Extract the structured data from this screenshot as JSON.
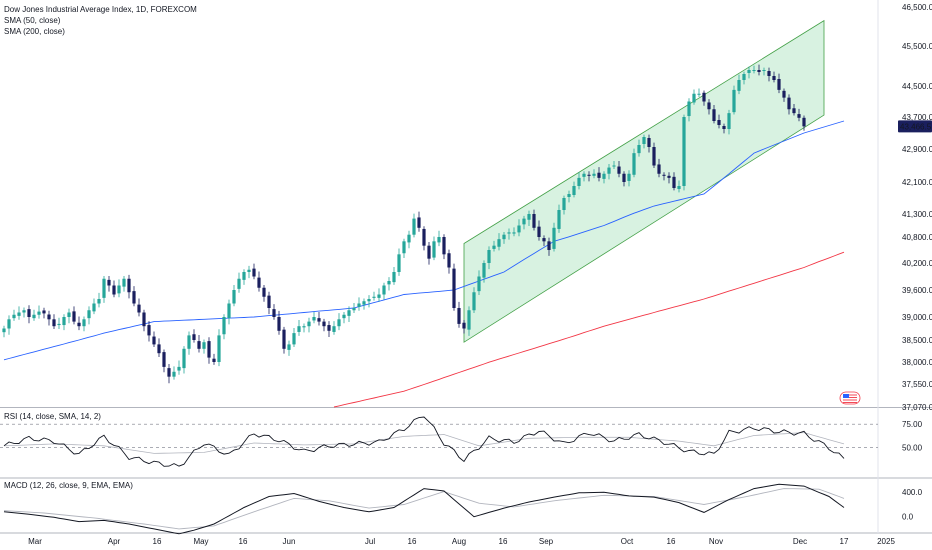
{
  "legend": {
    "title": "Dow Jones Industrial Average Index, 1D, FOREXCOM",
    "sma50": "SMA (50, close)",
    "sma200": "SMA (200, close)"
  },
  "rsi_label": "RSI (14, close, SMA, 14, 2)",
  "macd_label": "MACD (12, 26, close, 9, EMA, EMA)",
  "colors": {
    "up": "#26a69a",
    "down": "#1a1f5e",
    "sma50": "#2962ff",
    "sma200": "#f23645",
    "channel_fill": "#d1f0dc",
    "channel_line": "#43a047",
    "price_tag": "#1a1f5e"
  },
  "chart_data": [
    {
      "type": "candlestick",
      "title": "Dow Jones Industrial Average Index, 1D, FOREXCOM",
      "y_ticks": [
        "46,500.0",
        "45,500.0",
        "44,500.0",
        "43,700.0",
        "42,900.0",
        "42,100.0",
        "41,300.0",
        "40,800.0",
        "40,200.0",
        "39,600.0",
        "39,000.0",
        "38,500.0",
        "38,000.0",
        "37,550.0",
        "37,070.0"
      ],
      "y_tick_values": [
        46500,
        45500,
        44500,
        43700,
        42900,
        42100,
        41300,
        40800,
        40200,
        39600,
        39000,
        38500,
        38000,
        37550,
        37070
      ],
      "last_price_label": "43,466.5",
      "x_labels": [
        "Mar",
        "Apr",
        "16",
        "May",
        "16",
        "Jun",
        "Jul",
        "16",
        "Aug",
        "16",
        "Sep",
        "Oct",
        "16",
        "Nov",
        "Dec",
        "17",
        "2025"
      ],
      "x_label_dates": [
        "2024-03-01",
        "2024-04-01",
        "2024-04-16",
        "2024-05-01",
        "2024-05-16",
        "2024-06-03",
        "2024-07-01",
        "2024-07-16",
        "2024-08-01",
        "2024-08-16",
        "2024-09-03",
        "2024-10-01",
        "2024-10-16",
        "2024-11-01",
        "2024-12-02",
        "2024-12-17",
        "2025-01-02"
      ],
      "closes": [
        38750,
        38950,
        39050,
        39100,
        39150,
        39000,
        39050,
        39120,
        39080,
        38950,
        38800,
        38850,
        39000,
        39100,
        38900,
        38800,
        38950,
        39150,
        39300,
        39400,
        39850,
        39700,
        39500,
        39700,
        39850,
        39550,
        39300,
        39100,
        38800,
        38600,
        38400,
        38200,
        37900,
        37700,
        37800,
        37900,
        38300,
        38600,
        38500,
        38300,
        38450,
        38100,
        38000,
        38600,
        39000,
        39300,
        39600,
        39850,
        40000,
        40050,
        39900,
        39650,
        39450,
        39200,
        39000,
        38700,
        38300,
        38400,
        38650,
        38800,
        38800,
        38900,
        39000,
        38900,
        38800,
        38700,
        38800,
        38950,
        39050,
        39150,
        39200,
        39300,
        39350,
        39400,
        39450,
        39500,
        39700,
        39800,
        40000,
        40400,
        40700,
        40850,
        41200,
        41000,
        40600,
        40300,
        40700,
        40800,
        40400,
        40100,
        39200,
        38850,
        38750,
        39150,
        39550,
        39900,
        40200,
        40500,
        40600,
        40750,
        40850,
        40900,
        40900,
        41050,
        41200,
        41300,
        41000,
        40800,
        40700,
        40500,
        41000,
        41400,
        41700,
        41800,
        42000,
        42200,
        42300,
        42250,
        42300,
        42200,
        42300,
        42450,
        42500,
        42300,
        42100,
        42300,
        42800,
        43000,
        43200,
        42950,
        42500,
        42300,
        42250,
        42200,
        41950,
        42000,
        43700,
        44100,
        44300,
        44300,
        44100,
        43900,
        43600,
        43500,
        43400,
        43800,
        44400,
        44650,
        44800,
        44900,
        44900,
        44850,
        44900,
        44750,
        44650,
        44400,
        44200,
        43900,
        43800,
        43680,
        43466.5
      ],
      "sma50_anchors": [
        [
          0,
          38050
        ],
        [
          20,
          38650
        ],
        [
          30,
          38900
        ],
        [
          50,
          39000
        ],
        [
          70,
          39200
        ],
        [
          80,
          39500
        ],
        [
          90,
          39600
        ],
        [
          100,
          40000
        ],
        [
          110,
          40700
        ],
        [
          120,
          41050
        ],
        [
          130,
          41500
        ],
        [
          140,
          41800
        ],
        [
          150,
          42800
        ],
        [
          160,
          43300
        ],
        [
          168,
          43600
        ]
      ],
      "sma200_anchors": [
        [
          66,
          37070
        ],
        [
          80,
          37400
        ],
        [
          100,
          38100
        ],
        [
          120,
          38800
        ],
        [
          140,
          39400
        ],
        [
          160,
          40100
        ],
        [
          168,
          40450
        ]
      ],
      "channel": {
        "start_index": 92,
        "end_index": 172,
        "lower_start": 38450,
        "lower_end": 43750,
        "upper_start": 40650,
        "upper_end": 46150
      },
      "rsi": {
        "ticks": [
          "75.00",
          "50.00"
        ],
        "tick_values": [
          75,
          50
        ],
        "range": [
          20,
          90
        ],
        "anchors": [
          [
            0,
            52
          ],
          [
            5,
            60
          ],
          [
            10,
            57
          ],
          [
            15,
            43
          ],
          [
            20,
            62
          ],
          [
            25,
            40
          ],
          [
            30,
            34
          ],
          [
            35,
            30
          ],
          [
            40,
            55
          ],
          [
            45,
            42
          ],
          [
            50,
            65
          ],
          [
            55,
            58
          ],
          [
            60,
            46
          ],
          [
            65,
            52
          ],
          [
            70,
            54
          ],
          [
            75,
            56
          ],
          [
            80,
            70
          ],
          [
            84,
            85
          ],
          [
            88,
            55
          ],
          [
            92,
            37
          ],
          [
            97,
            60
          ],
          [
            102,
            56
          ],
          [
            107,
            68
          ],
          [
            112,
            54
          ],
          [
            117,
            66
          ],
          [
            122,
            57
          ],
          [
            127,
            64
          ],
          [
            132,
            56
          ],
          [
            137,
            46
          ],
          [
            142,
            43
          ],
          [
            145,
            66
          ],
          [
            150,
            71
          ],
          [
            155,
            67
          ],
          [
            160,
            65
          ],
          [
            165,
            50
          ],
          [
            168,
            38
          ]
        ],
        "sma_anchors": [
          [
            0,
            52
          ],
          [
            10,
            54
          ],
          [
            20,
            52
          ],
          [
            30,
            44
          ],
          [
            40,
            45
          ],
          [
            50,
            55
          ],
          [
            60,
            53
          ],
          [
            70,
            54
          ],
          [
            80,
            62
          ],
          [
            88,
            64
          ],
          [
            95,
            52
          ],
          [
            105,
            60
          ],
          [
            115,
            61
          ],
          [
            125,
            61
          ],
          [
            135,
            57
          ],
          [
            142,
            52
          ],
          [
            150,
            63
          ],
          [
            160,
            66
          ],
          [
            168,
            54
          ]
        ]
      },
      "macd": {
        "ticks": [
          "400.0",
          "0.0"
        ],
        "tick_values": [
          400,
          0
        ],
        "range": [
          -250,
          600
        ],
        "anchors": [
          [
            0,
            80
          ],
          [
            5,
            40
          ],
          [
            10,
            -10
          ],
          [
            15,
            -80
          ],
          [
            20,
            -60
          ],
          [
            25,
            -120
          ],
          [
            30,
            -200
          ],
          [
            35,
            -280
          ],
          [
            38,
            -220
          ],
          [
            42,
            -120
          ],
          [
            48,
            150
          ],
          [
            53,
            330
          ],
          [
            58,
            380
          ],
          [
            63,
            250
          ],
          [
            68,
            150
          ],
          [
            73,
            80
          ],
          [
            78,
            150
          ],
          [
            84,
            460
          ],
          [
            88,
            420
          ],
          [
            94,
            0
          ],
          [
            100,
            140
          ],
          [
            105,
            240
          ],
          [
            110,
            320
          ],
          [
            115,
            390
          ],
          [
            120,
            400
          ],
          [
            125,
            340
          ],
          [
            130,
            320
          ],
          [
            135,
            230
          ],
          [
            140,
            70
          ],
          [
            145,
            280
          ],
          [
            150,
            460
          ],
          [
            155,
            530
          ],
          [
            160,
            500
          ],
          [
            165,
            330
          ],
          [
            168,
            150
          ]
        ],
        "signal_anchors": [
          [
            0,
            100
          ],
          [
            8,
            60
          ],
          [
            18,
            -20
          ],
          [
            28,
            -120
          ],
          [
            35,
            -200
          ],
          [
            42,
            -150
          ],
          [
            50,
            80
          ],
          [
            58,
            300
          ],
          [
            65,
            260
          ],
          [
            73,
            140
          ],
          [
            80,
            200
          ],
          [
            88,
            410
          ],
          [
            95,
            220
          ],
          [
            102,
            160
          ],
          [
            110,
            260
          ],
          [
            120,
            350
          ],
          [
            130,
            330
          ],
          [
            140,
            200
          ],
          [
            148,
            320
          ],
          [
            156,
            460
          ],
          [
            163,
            450
          ],
          [
            168,
            300
          ]
        ]
      }
    }
  ]
}
